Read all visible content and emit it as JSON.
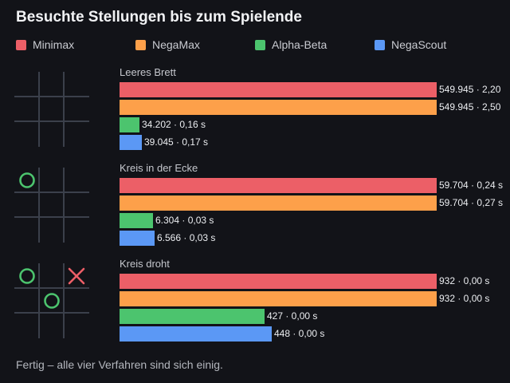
{
  "title": "Besuchte Stellungen bis zum Spielende",
  "footer": "Fertig – alle vier Verfahren sind sich einig.",
  "colors": {
    "Minimax": "#ec5f67",
    "NegaMax": "#fda04a",
    "Alpha-Beta": "#4cc46e",
    "NegaScout": "#5b98f5",
    "grid": "#3b404b",
    "circle": "#4cc46e",
    "cross": "#ec5f67"
  },
  "chart_data": {
    "type": "bar",
    "orientation": "horizontal",
    "title": "Besuchte Stellungen bis zum Spielende",
    "legend_position": "top",
    "legend": [
      "Minimax",
      "NegaMax",
      "Alpha-Beta",
      "NegaScout"
    ],
    "categories": [
      "Leeres Brett",
      "Kreis in der Ecke",
      "Kreis droht"
    ],
    "series": [
      {
        "name": "Minimax",
        "values": [
          549945,
          59704,
          932
        ],
        "labels": [
          "549.945 · 2,20",
          "59.704 · 0,24 s",
          "932 · 0,00 s"
        ]
      },
      {
        "name": "NegaMax",
        "values": [
          549945,
          59704,
          932
        ],
        "labels": [
          "549.945 · 2,50",
          "59.704 · 0,27 s",
          "932 · 0,00 s"
        ]
      },
      {
        "name": "Alpha-Beta",
        "values": [
          34202,
          6304,
          427
        ],
        "labels": [
          "34.202 · 0,16 s",
          "6.304 · 0,03 s",
          "427 · 0,00 s"
        ]
      },
      {
        "name": "NegaScout",
        "values": [
          39045,
          6566,
          448
        ],
        "labels": [
          "39.045 · 0,17 s",
          "6.566 · 0,03 s",
          "448 · 0,00 s"
        ]
      }
    ],
    "boards": [
      {
        "cells": [
          "",
          "",
          "",
          "",
          "",
          "",
          "",
          "",
          ""
        ]
      },
      {
        "cells": [
          "O",
          "",
          "",
          "",
          "",
          "",
          "",
          "",
          ""
        ]
      },
      {
        "cells": [
          "O",
          "",
          "X",
          "",
          "O",
          "",
          "",
          "",
          ""
        ]
      }
    ]
  }
}
